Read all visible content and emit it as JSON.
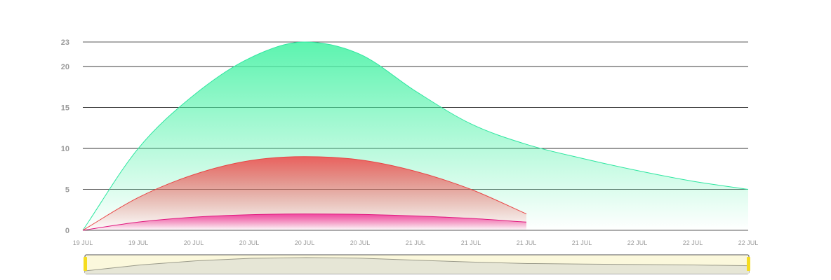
{
  "chart_data": {
    "type": "area",
    "title": "",
    "xlabel": "",
    "ylabel": "",
    "grid": true,
    "x_domain": [
      0,
      12
    ],
    "ylim": [
      0,
      23
    ],
    "y_ticks": [
      0,
      5,
      10,
      15,
      20,
      23
    ],
    "x_tick_labels": [
      "19 JUL",
      "19 JUL",
      "20 JUL",
      "20 JUL",
      "20 JUL",
      "20 JUL",
      "21 JUL",
      "21 JUL",
      "21 JUL",
      "21 JUL",
      "22 JUL",
      "22 JUL",
      "22 JUL"
    ],
    "series": [
      {
        "name": "green",
        "color": "#2ee6a0",
        "fill_top": "#4af2a6",
        "x": [
          0,
          1,
          2,
          3,
          4,
          5,
          6,
          7,
          8,
          9,
          10,
          11,
          12
        ],
        "values": [
          0,
          10,
          16.5,
          21,
          23,
          21.5,
          17,
          13,
          10.5,
          8.8,
          7.3,
          6,
          5
        ]
      },
      {
        "name": "red",
        "color": "#e84545",
        "fill_top": "#ef5050",
        "x": [
          0,
          1,
          2,
          3,
          4,
          5,
          6,
          7,
          8
        ],
        "values": [
          0,
          4,
          6.8,
          8.5,
          9,
          8.6,
          7.2,
          5,
          2
        ]
      },
      {
        "name": "pink",
        "color": "#e0187e",
        "fill_top": "#f0389a",
        "x": [
          0,
          1,
          2,
          3,
          4,
          5,
          6,
          7,
          8
        ],
        "values": [
          0,
          1,
          1.6,
          1.9,
          2,
          1.95,
          1.75,
          1.45,
          1
        ]
      }
    ],
    "navigator": {
      "fill": "#fbf8dc",
      "handle_color": "#f5dc1e",
      "range": [
        0,
        12
      ],
      "preview_values": [
        0,
        4,
        6.8,
        8.5,
        9,
        8.6,
        7.2,
        6,
        5,
        4.6,
        4.3,
        4,
        3.5
      ]
    }
  }
}
